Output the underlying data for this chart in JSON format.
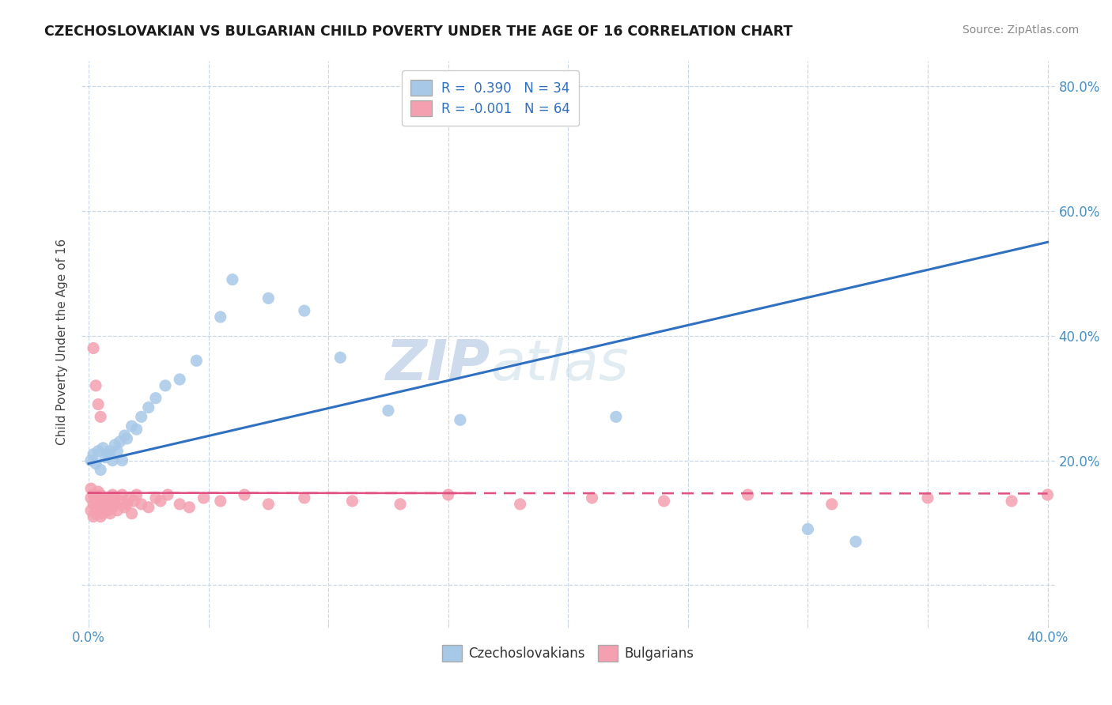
{
  "title": "CZECHOSLOVAKIAN VS BULGARIAN CHILD POVERTY UNDER THE AGE OF 16 CORRELATION CHART",
  "source": "Source: ZipAtlas.com",
  "ylabel": "Child Poverty Under the Age of 16",
  "xlim": [
    -0.003,
    0.403
  ],
  "ylim": [
    -0.06,
    0.84
  ],
  "xticks": [
    0.0,
    0.05,
    0.1,
    0.15,
    0.2,
    0.25,
    0.3,
    0.35,
    0.4
  ],
  "yticks_right": [
    0.0,
    0.2,
    0.4,
    0.6,
    0.8
  ],
  "yticklabels_right": [
    "",
    "20.0%",
    "40.0%",
    "60.0%",
    "80.0%"
  ],
  "blue_color": "#a8c8e8",
  "pink_color": "#f4a0b0",
  "blue_line_color": "#3070c0",
  "pink_line_color": "#e05080",
  "grid_color": "#c8d8e8",
  "watermark_zip": "ZIP",
  "watermark_atlas": "atlas",
  "czecho_x": [
    0.001,
    0.002,
    0.003,
    0.004,
    0.005,
    0.006,
    0.007,
    0.008,
    0.009,
    0.01,
    0.011,
    0.012,
    0.013,
    0.014,
    0.015,
    0.016,
    0.018,
    0.02,
    0.022,
    0.025,
    0.028,
    0.032,
    0.038,
    0.045,
    0.055,
    0.06,
    0.075,
    0.09,
    0.105,
    0.125,
    0.155,
    0.22,
    0.3,
    0.32
  ],
  "czecho_y": [
    0.2,
    0.21,
    0.195,
    0.215,
    0.185,
    0.22,
    0.205,
    0.21,
    0.215,
    0.2,
    0.225,
    0.215,
    0.23,
    0.2,
    0.24,
    0.235,
    0.255,
    0.25,
    0.27,
    0.285,
    0.3,
    0.32,
    0.33,
    0.36,
    0.43,
    0.49,
    0.46,
    0.44,
    0.365,
    0.28,
    0.265,
    0.27,
    0.09,
    0.07
  ],
  "bulg_x": [
    0.001,
    0.001,
    0.001,
    0.002,
    0.002,
    0.002,
    0.003,
    0.003,
    0.003,
    0.004,
    0.004,
    0.004,
    0.005,
    0.005,
    0.005,
    0.006,
    0.006,
    0.006,
    0.007,
    0.007,
    0.008,
    0.008,
    0.009,
    0.009,
    0.01,
    0.01,
    0.011,
    0.011,
    0.012,
    0.013,
    0.014,
    0.015,
    0.016,
    0.017,
    0.018,
    0.019,
    0.02,
    0.022,
    0.025,
    0.028,
    0.03,
    0.033,
    0.038,
    0.042,
    0.048,
    0.055,
    0.065,
    0.075,
    0.09,
    0.11,
    0.13,
    0.15,
    0.18,
    0.21,
    0.24,
    0.275,
    0.31,
    0.35,
    0.385,
    0.4,
    0.002,
    0.003,
    0.004,
    0.005
  ],
  "bulg_y": [
    0.155,
    0.14,
    0.12,
    0.13,
    0.145,
    0.11,
    0.125,
    0.14,
    0.115,
    0.135,
    0.15,
    0.12,
    0.13,
    0.145,
    0.11,
    0.125,
    0.14,
    0.115,
    0.135,
    0.125,
    0.12,
    0.14,
    0.13,
    0.115,
    0.145,
    0.125,
    0.13,
    0.14,
    0.12,
    0.135,
    0.145,
    0.125,
    0.13,
    0.14,
    0.115,
    0.135,
    0.145,
    0.13,
    0.125,
    0.14,
    0.135,
    0.145,
    0.13,
    0.125,
    0.14,
    0.135,
    0.145,
    0.13,
    0.14,
    0.135,
    0.13,
    0.145,
    0.13,
    0.14,
    0.135,
    0.145,
    0.13,
    0.14,
    0.135,
    0.145,
    0.38,
    0.32,
    0.29,
    0.27
  ],
  "blue_trendline_x": [
    0.0,
    0.4
  ],
  "blue_trendline_y": [
    0.195,
    0.55
  ],
  "pink_trendline_x": [
    0.0,
    0.4
  ],
  "pink_trendline_y": [
    0.148,
    0.147
  ]
}
